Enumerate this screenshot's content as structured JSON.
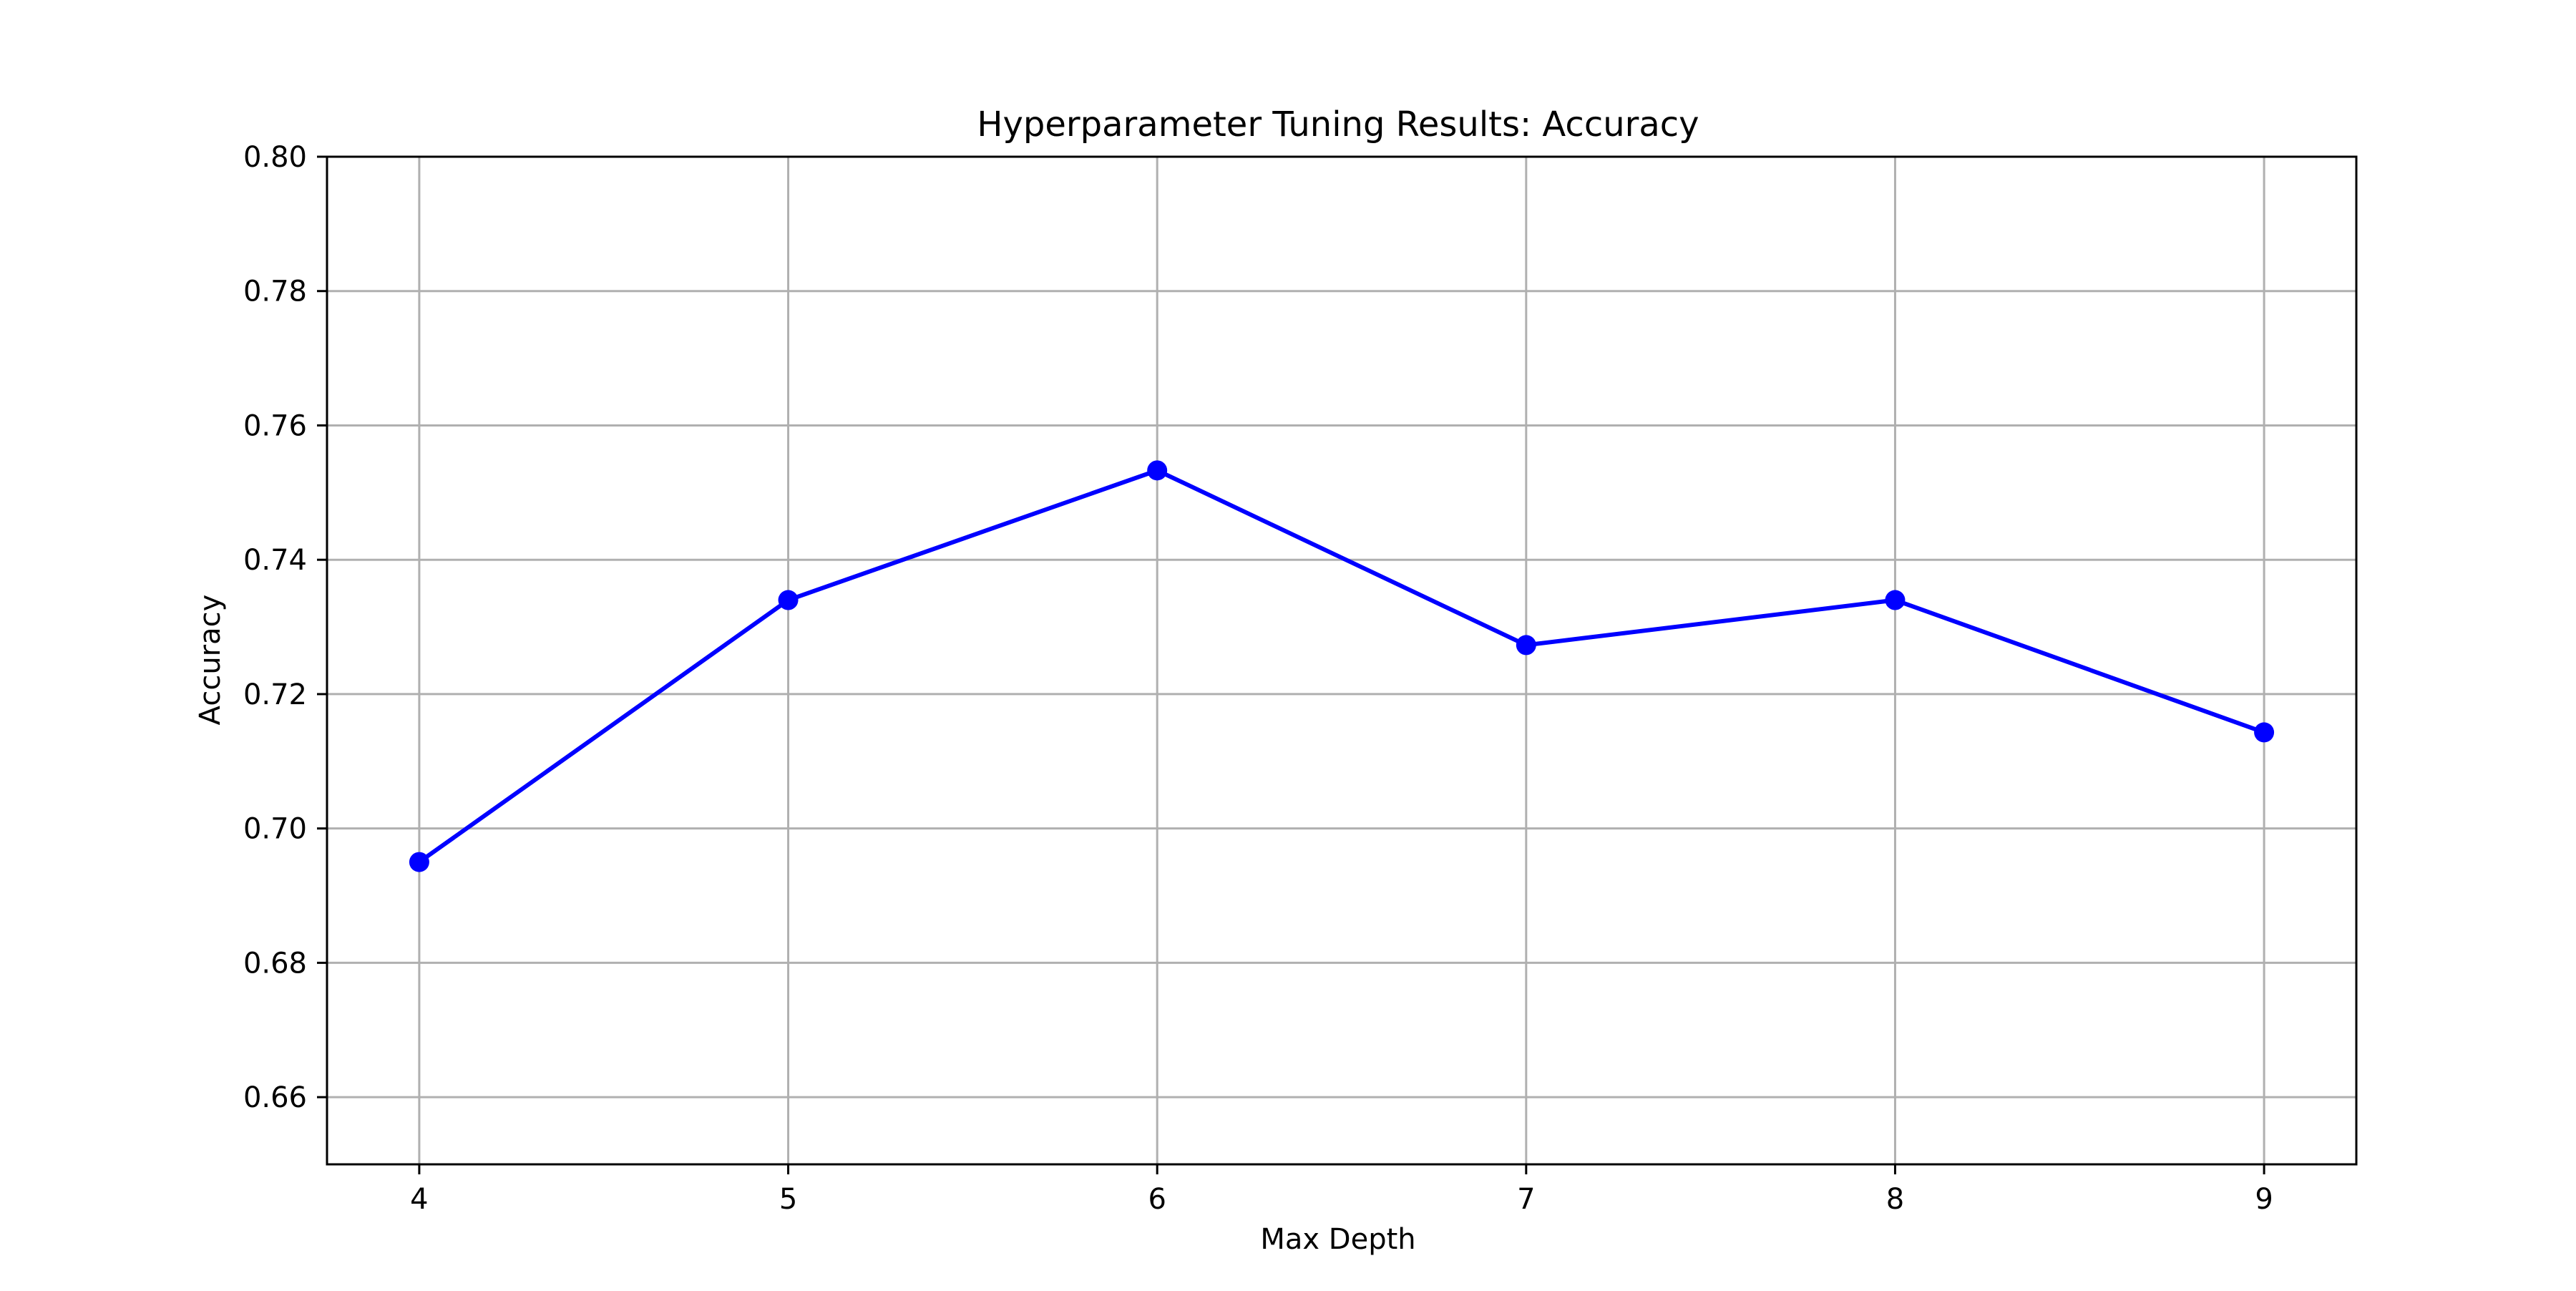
{
  "chart_data": {
    "type": "line",
    "title": "Hyperparameter Tuning Results: Accuracy",
    "xlabel": "Max Depth",
    "ylabel": "Accuracy",
    "x": [
      4,
      5,
      6,
      7,
      8,
      9
    ],
    "series": [
      {
        "values": [
          0.695,
          0.734,
          0.7533,
          0.7273,
          0.734,
          0.7143
        ],
        "color": "#0000ff",
        "marker": "circle"
      }
    ],
    "xticks": [
      "4",
      "5",
      "6",
      "7",
      "8",
      "9"
    ],
    "yticks": [
      "0.66",
      "0.68",
      "0.70",
      "0.72",
      "0.74",
      "0.76",
      "0.78",
      "0.80"
    ],
    "xlim": [
      3.75,
      9.25
    ],
    "ylim": [
      0.65,
      0.8
    ],
    "grid": true,
    "legend": "none"
  }
}
